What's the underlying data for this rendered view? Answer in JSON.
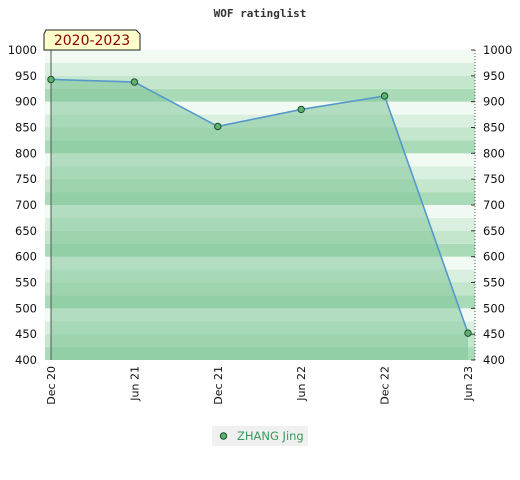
{
  "chart_data": {
    "type": "area",
    "title": "WOF ratinglist",
    "badge": "2020-2023",
    "categories": [
      "Dec 20",
      "Jun 21",
      "Dec 21",
      "Jun 22",
      "Dec 22",
      "Jun 23"
    ],
    "series": [
      {
        "name": "ZHANG Jing",
        "values": [
          943,
          938,
          852,
          885,
          911,
          452
        ]
      }
    ],
    "ylim": [
      400,
      1000
    ],
    "yticks": [
      1000,
      950,
      900,
      850,
      800,
      750,
      700,
      650,
      600,
      550,
      500,
      450,
      400
    ],
    "xlabel": "",
    "ylabel": "",
    "legend_position": "bottom",
    "grid": "horizontal bands",
    "colors": {
      "line": "#5599cc",
      "area": "#7ec498",
      "marker": "#5fb36f",
      "band_light": "#f2faf4",
      "band_dark": "#aadbb8",
      "badge_fill": "#ffffcc"
    }
  }
}
